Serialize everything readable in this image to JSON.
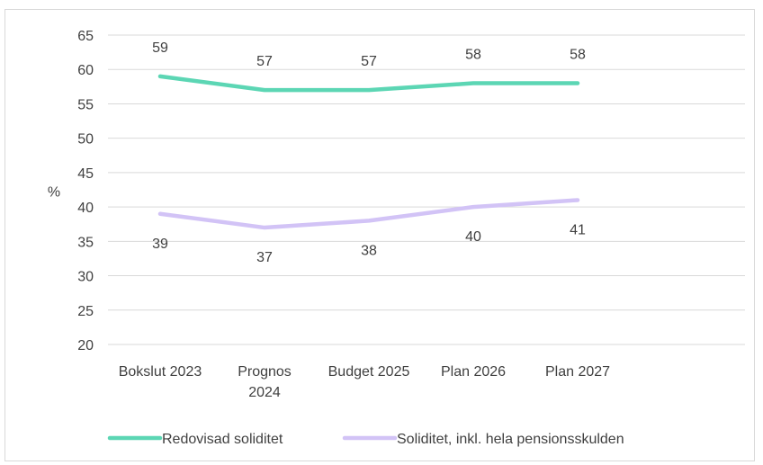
{
  "chart_data": {
    "type": "line",
    "categories": [
      [
        "Bokslut 2023"
      ],
      [
        "Prognos",
        "2024"
      ],
      [
        "Budget 2025"
      ],
      [
        "Plan 2026"
      ],
      [
        "Plan 2027"
      ]
    ],
    "series": [
      {
        "name": "Redovisad soliditet",
        "values": [
          59,
          57,
          57,
          58,
          58
        ],
        "color": "#5cd6b4",
        "label_position": "above"
      },
      {
        "name": "Soliditet, inkl. hela pensionsskulden",
        "values": [
          39,
          37,
          38,
          40,
          41
        ],
        "color": "#d2c3f6",
        "label_position": "below"
      }
    ],
    "ylabel": "%",
    "ylim": [
      20,
      65
    ],
    "yticks": [
      20,
      25,
      30,
      35,
      40,
      45,
      50,
      55,
      60,
      65
    ],
    "grid": true,
    "legend": "bottom"
  }
}
